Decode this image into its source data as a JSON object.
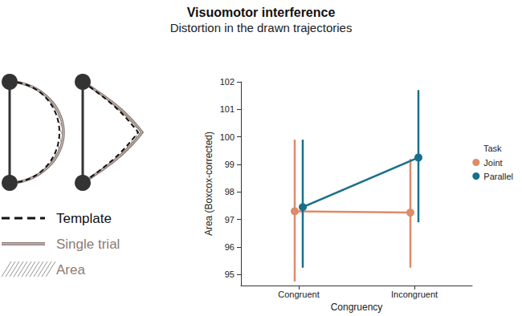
{
  "chart_data": {
    "type": "point",
    "title": "Visuomotor interference",
    "subtitle": "Distortion in the drawn trajectories",
    "x_label": "Congruency",
    "y_label": "Area (Boxcox-corrected)",
    "categories": [
      "Congruent",
      "Incongruent"
    ],
    "legend_title": "Task",
    "series": [
      {
        "name": "Joint",
        "color": "#dd8b6b",
        "values": [
          97.3,
          97.25
        ],
        "ci": [
          [
            94.75,
            99.9
          ],
          [
            95.25,
            99.2
          ]
        ]
      },
      {
        "name": "Parallel",
        "color": "#1a6f8c",
        "values": [
          97.45,
          99.25
        ],
        "ci": [
          [
            95.25,
            99.9
          ],
          [
            96.9,
            101.7
          ]
        ]
      }
    ],
    "ylim": [
      94.6,
      102
    ],
    "yticks": [
      95,
      96,
      97,
      98,
      99,
      100,
      101,
      102
    ],
    "grid": false,
    "legend": "right",
    "marker": "circle"
  },
  "diagram": {
    "labels": [
      "Template",
      "Single trial",
      "Area"
    ]
  }
}
